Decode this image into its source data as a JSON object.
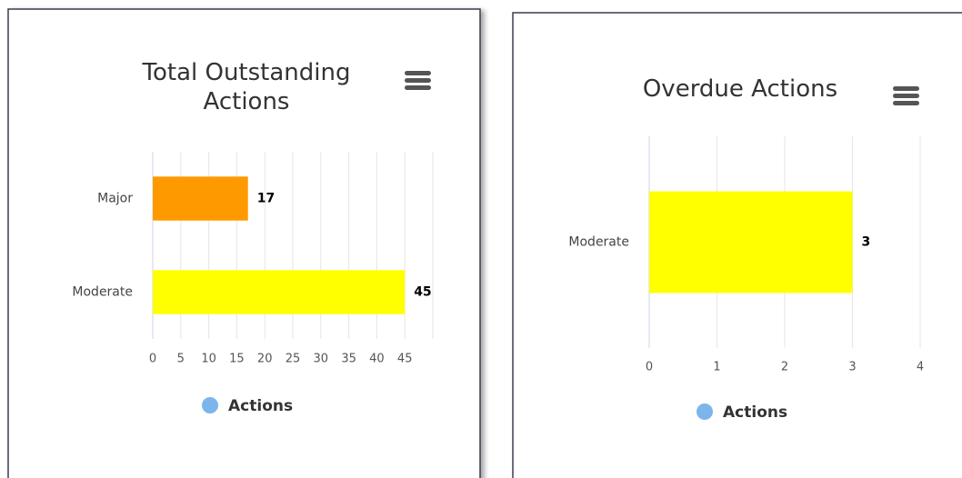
{
  "chart_data": [
    {
      "type": "bar",
      "orientation": "horizontal",
      "title": "Total Outstanding Actions",
      "categories": [
        "Major",
        "Moderate"
      ],
      "series": [
        {
          "name": "Actions",
          "color": "#7cb5ec",
          "values": [
            17,
            45
          ],
          "colors": [
            "#ff9900",
            "#ffff00"
          ]
        }
      ],
      "xlim": [
        0,
        50
      ],
      "xticks": [
        0,
        5,
        10,
        15,
        20,
        25,
        30,
        35,
        40,
        45
      ],
      "grid": true,
      "legend": "bottom"
    },
    {
      "type": "bar",
      "orientation": "horizontal",
      "title": "Overdue Actions",
      "categories": [
        "Moderate"
      ],
      "series": [
        {
          "name": "Actions",
          "color": "#7cb5ec",
          "values": [
            3
          ],
          "colors": [
            "#ffff00"
          ]
        }
      ],
      "xlim": [
        0,
        4
      ],
      "xticks": [
        0,
        1,
        2,
        3,
        4
      ],
      "grid": true,
      "legend": "bottom"
    }
  ]
}
